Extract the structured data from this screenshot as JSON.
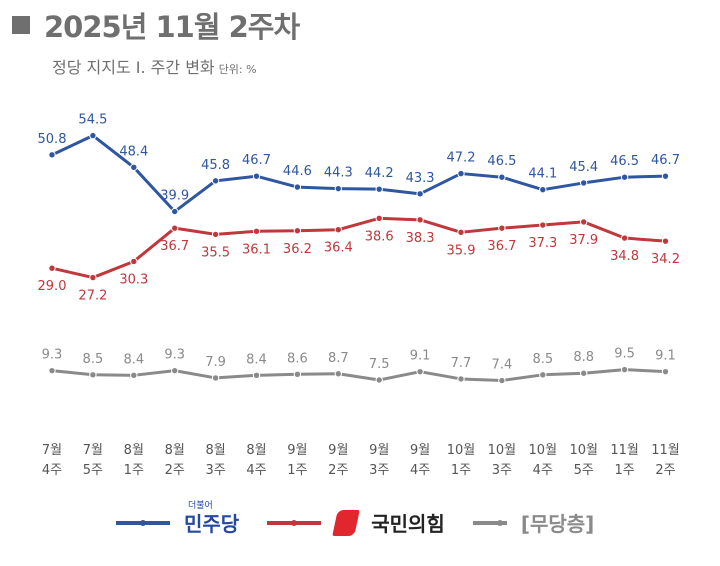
{
  "header": {
    "title": "2025년 11월 2주차",
    "subtitle": "정당 지지도 Ⅰ. 주간 변화",
    "unit": "단위: %"
  },
  "chart_data": {
    "type": "line",
    "categories": [
      [
        "7월",
        "4주"
      ],
      [
        "7월",
        "5주"
      ],
      [
        "8월",
        "1주"
      ],
      [
        "8월",
        "2주"
      ],
      [
        "8월",
        "3주"
      ],
      [
        "8월",
        "4주"
      ],
      [
        "9월",
        "1주"
      ],
      [
        "9월",
        "2주"
      ],
      [
        "9월",
        "3주"
      ],
      [
        "9월",
        "4주"
      ],
      [
        "10월",
        "1주"
      ],
      [
        "10월",
        "3주"
      ],
      [
        "10월",
        "4주"
      ],
      [
        "10월",
        "5주"
      ],
      [
        "11월",
        "1주"
      ],
      [
        "11월",
        "2주"
      ]
    ],
    "series": [
      {
        "name": "민주당",
        "color": "#2f56a0",
        "label_pos": "above",
        "values": [
          50.8,
          54.5,
          48.4,
          39.9,
          45.8,
          46.7,
          44.6,
          44.3,
          44.2,
          43.3,
          47.2,
          46.5,
          44.1,
          45.4,
          46.5,
          46.7
        ]
      },
      {
        "name": "국민의힘",
        "color": "#c0373c",
        "label_pos": "below",
        "values": [
          29.0,
          27.2,
          30.3,
          36.7,
          35.5,
          36.1,
          36.2,
          36.4,
          38.6,
          38.3,
          35.9,
          36.7,
          37.3,
          37.9,
          34.8,
          34.2
        ]
      },
      {
        "name": "[무당층]",
        "color": "#8a8a8a",
        "label_pos": "above",
        "values": [
          9.3,
          8.5,
          8.4,
          9.3,
          7.9,
          8.4,
          8.6,
          8.7,
          7.5,
          9.1,
          7.7,
          7.4,
          8.5,
          8.8,
          9.5,
          9.1
        ]
      }
    ],
    "grid": false,
    "legend": "bottom"
  },
  "legend": {
    "dem_note": "더불어"
  }
}
